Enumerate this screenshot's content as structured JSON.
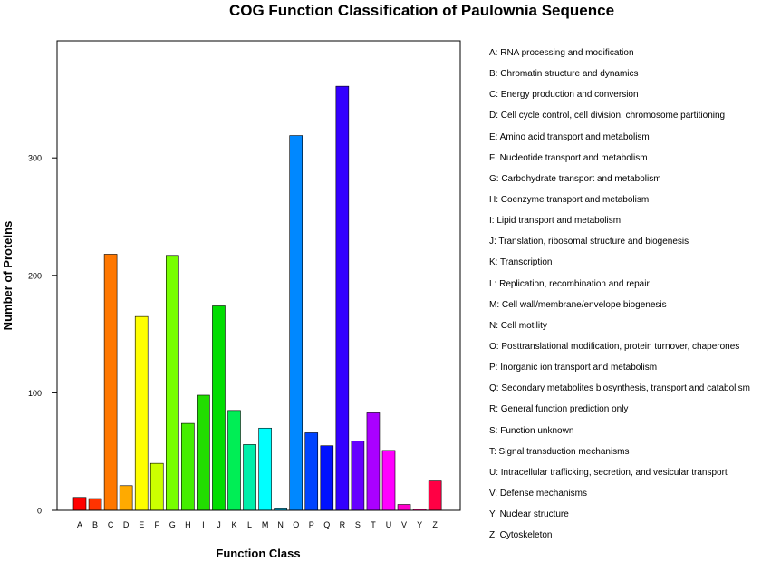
{
  "chart_data": {
    "type": "bar",
    "title": "COG Function Classification of Paulownia Sequence",
    "xlabel": "Function Class",
    "ylabel": "Number of Proteins",
    "ylim": [
      0,
      390
    ],
    "yticks": [
      0,
      100,
      200,
      300
    ],
    "categories": [
      "A",
      "B",
      "C",
      "D",
      "E",
      "F",
      "G",
      "H",
      "I",
      "J",
      "K",
      "L",
      "M",
      "N",
      "O",
      "P",
      "Q",
      "R",
      "S",
      "T",
      "U",
      "V",
      "Y",
      "Z"
    ],
    "values": [
      11,
      10,
      218,
      21,
      165,
      40,
      217,
      74,
      98,
      174,
      85,
      56,
      70,
      2,
      319,
      66,
      55,
      361,
      59,
      83,
      51,
      5,
      1,
      25
    ],
    "colors": [
      "#ff0000",
      "#ff3300",
      "#ff7700",
      "#ffaa00",
      "#ffff00",
      "#ccff00",
      "#77ff00",
      "#44ee00",
      "#22dd00",
      "#00dd00",
      "#00ee55",
      "#00eeaa",
      "#00ffff",
      "#00ccff",
      "#0088ff",
      "#0044ff",
      "#0011ff",
      "#3300ff",
      "#6600ff",
      "#aa00ff",
      "#ff00ff",
      "#ff00cc",
      "#ff0088",
      "#ff0044"
    ],
    "legend": [
      "A: RNA processing and modification",
      "B: Chromatin structure and dynamics",
      "C: Energy production and conversion",
      "D: Cell cycle control, cell division, chromosome partitioning",
      "E: Amino acid transport and metabolism",
      "F: Nucleotide transport and metabolism",
      "G: Carbohydrate transport and metabolism",
      "H: Coenzyme transport and metabolism",
      "I: Lipid transport and metabolism",
      "J: Translation, ribosomal structure and biogenesis",
      "K: Transcription",
      "L: Replication, recombination and repair",
      "M: Cell wall/membrane/envelope biogenesis",
      "N: Cell motility",
      "O: Posttranslational modification, protein turnover, chaperones",
      "P: Inorganic ion transport and metabolism",
      "Q: Secondary metabolites biosynthesis, transport and catabolism",
      "R: General function prediction only",
      "S: Function unknown",
      "T: Signal transduction mechanisms",
      "U: Intracellular trafficking, secretion, and vesicular transport",
      "V: Defense mechanisms",
      "Y: Nuclear structure",
      "Z: Cytoskeleton"
    ],
    "legend_position": "right"
  }
}
